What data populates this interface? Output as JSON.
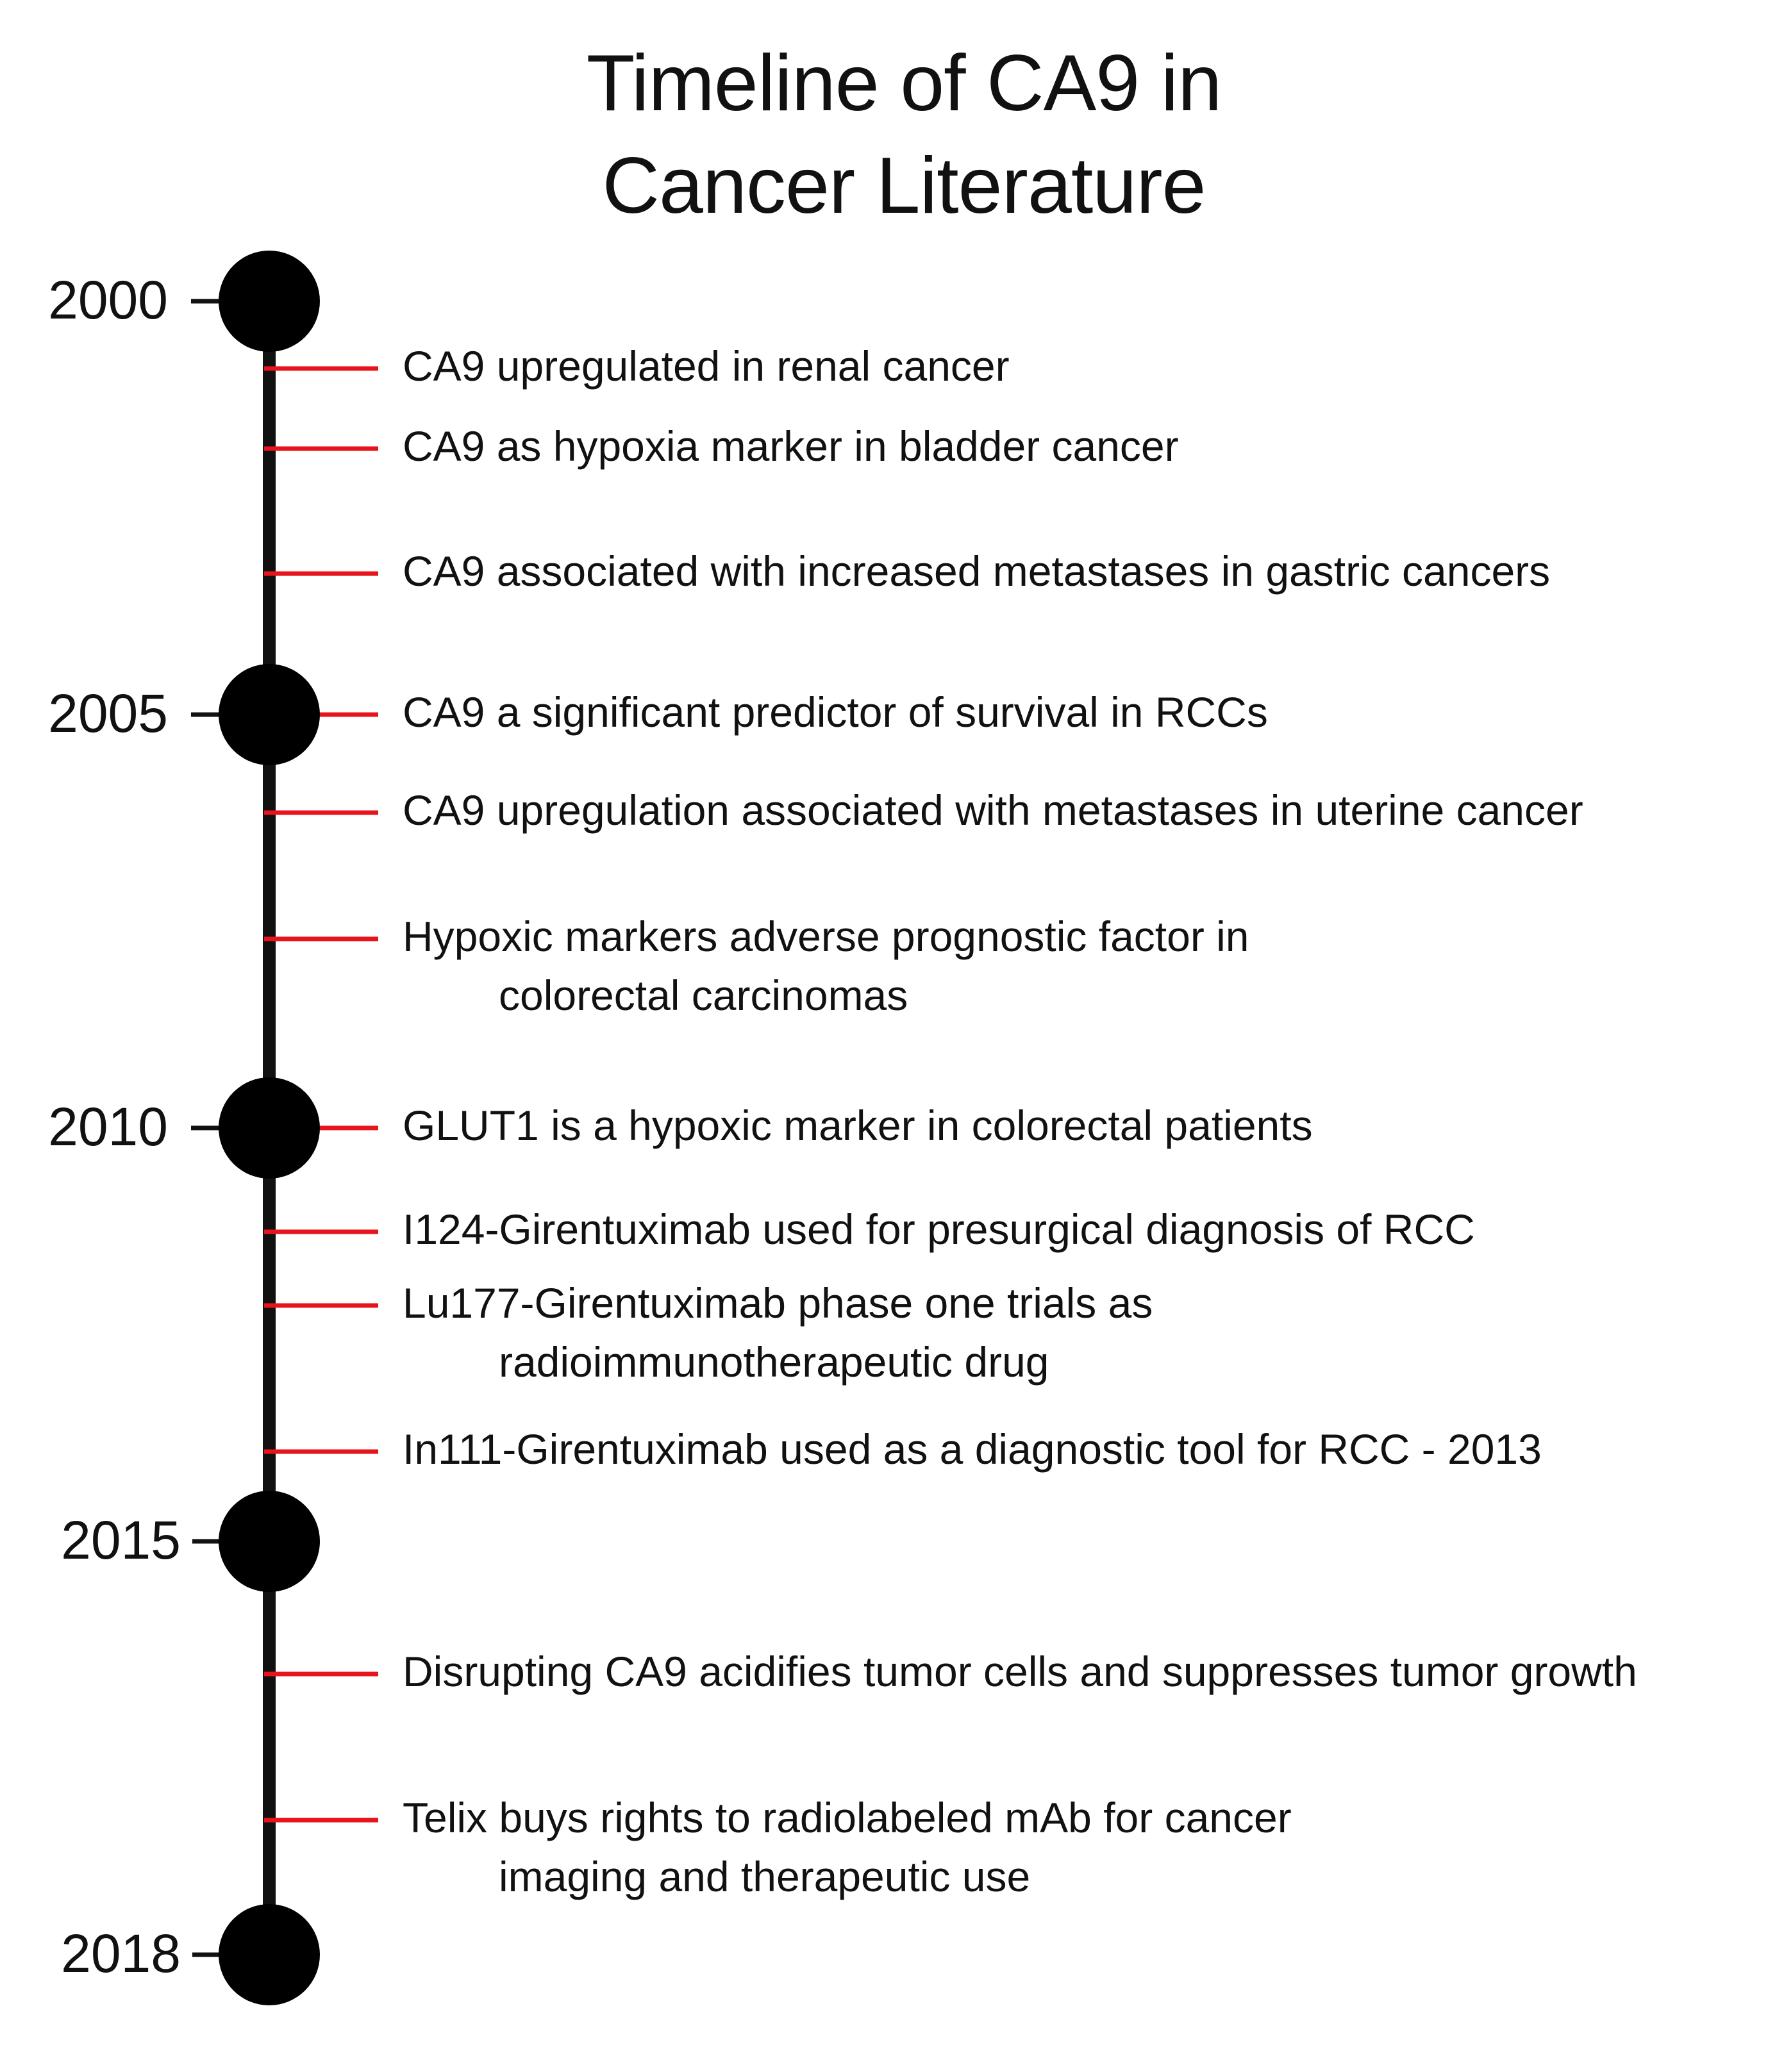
{
  "title": {
    "line1": "Timeline of CA9 in",
    "line2": "Cancer Literature"
  },
  "colors": {
    "axis": "#111111",
    "marker": "#000000",
    "event_tick": "#e8141c"
  },
  "years": [
    {
      "label": "2000"
    },
    {
      "label": "2005"
    },
    {
      "label": "2010"
    },
    {
      "label": "2015"
    },
    {
      "label": "2018"
    }
  ],
  "events": [
    {
      "line1": "CA9 upregulated in renal cancer",
      "line2": ""
    },
    {
      "line1": "CA9 as hypoxia marker in bladder cancer",
      "line2": ""
    },
    {
      "line1": "CA9 associated with increased metastases in gastric cancers",
      "line2": ""
    },
    {
      "line1": "CA9 a significant predictor of survival in RCCs",
      "line2": ""
    },
    {
      "line1": "CA9 upregulation associated with metastases in uterine cancer",
      "line2": ""
    },
    {
      "line1": "Hypoxic markers adverse prognostic factor in",
      "line2": "colorectal carcinomas"
    },
    {
      "line1": "GLUT1 is a hypoxic marker in colorectal patients",
      "line2": ""
    },
    {
      "line1": "I124-Girentuximab used for presurgical diagnosis of RCC",
      "line2": ""
    },
    {
      "line1": "Lu177-Girentuximab phase one trials as",
      "line2": "radioimmunotherapeutic drug"
    },
    {
      "line1": "In111-Girentuximab used as a diagnostic tool for RCC - 2013",
      "line2": ""
    },
    {
      "line1": "Disrupting CA9 acidifies tumor cells and suppresses tumor growth",
      "line2": ""
    },
    {
      "line1": "Telix buys rights to radiolabeled mAb for cancer",
      "line2": "imaging and therapeutic use"
    }
  ]
}
